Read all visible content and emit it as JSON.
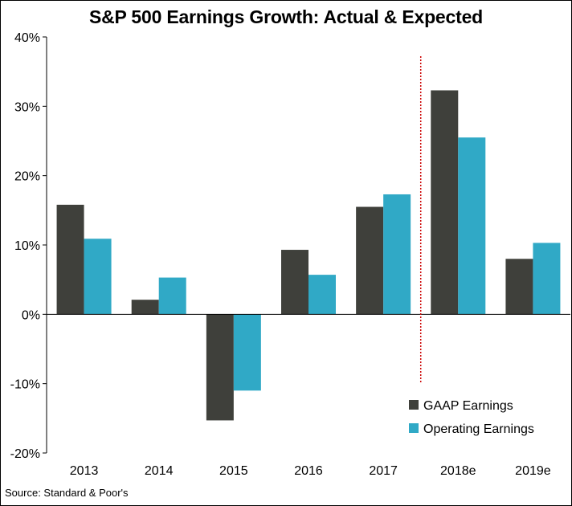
{
  "chart_data": {
    "type": "bar",
    "title": "S&P 500 Earnings Growth: Actual & Expected",
    "categories": [
      "2013",
      "2014",
      "2015",
      "2016",
      "2017",
      "2018e",
      "2019e"
    ],
    "series": [
      {
        "name": "GAAP Earnings",
        "color": "#3f403b",
        "values": [
          15.8,
          2.1,
          -15.3,
          9.3,
          15.5,
          32.3,
          8.0
        ]
      },
      {
        "name": "Operating Earnings",
        "color": "#30a9c6",
        "values": [
          10.9,
          5.3,
          -11.0,
          5.7,
          17.3,
          25.5,
          10.3
        ]
      }
    ],
    "ylim": [
      -20,
      40
    ],
    "yticks": [
      -20,
      -10,
      0,
      10,
      20,
      30,
      40
    ],
    "ytick_labels": [
      "-20%",
      "-10%",
      "0%",
      "10%",
      "20%",
      "30%",
      "40%"
    ],
    "divider_between": [
      "2017",
      "2018e"
    ],
    "divider_color": "#cc0000",
    "legend_position": "bottom-right",
    "grid": false
  },
  "footer": {
    "source": "Source:  Standard & Poor's"
  }
}
